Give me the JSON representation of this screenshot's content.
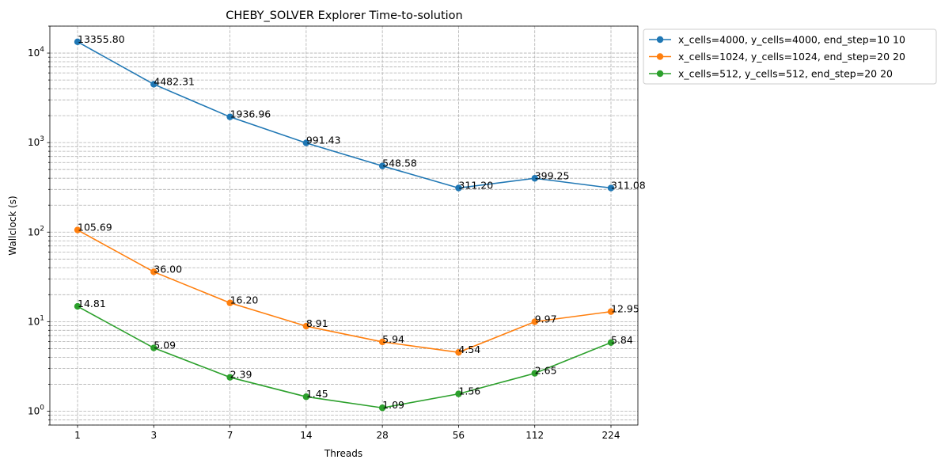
{
  "chart_data": {
    "type": "line",
    "title": "CHEBY_SOLVER Explorer Time-to-solution",
    "xlabel": "Threads",
    "ylabel": "Wallclock (s)",
    "yscale": "log",
    "ylim": [
      0.7,
      20000
    ],
    "grid": true,
    "legend_position": "outside-top-right",
    "categories": [
      "1",
      "3",
      "7",
      "14",
      "28",
      "56",
      "112",
      "224"
    ],
    "series": [
      {
        "name": "x_cells=4000, y_cells=4000, end_step=10 10",
        "color": "#1f77b4",
        "values": [
          13355.8,
          4482.31,
          1936.96,
          991.43,
          548.58,
          311.2,
          399.25,
          311.08
        ],
        "labels": [
          "13355.80",
          "4482.31",
          "1936.96",
          "991.43",
          "548.58",
          "311.20",
          "399.25",
          "311.08"
        ]
      },
      {
        "name": "x_cells=1024, y_cells=1024, end_step=20 20",
        "color": "#ff7f0e",
        "values": [
          105.69,
          36.0,
          16.2,
          8.91,
          5.94,
          4.54,
          9.97,
          12.95
        ],
        "labels": [
          "105.69",
          "36.00",
          "16.20",
          "8.91",
          "5.94",
          "4.54",
          "9.97",
          "12.95"
        ]
      },
      {
        "name": "x_cells=512, y_cells=512, end_step=20 20",
        "color": "#2ca02c",
        "values": [
          14.81,
          5.09,
          2.39,
          1.45,
          1.09,
          1.56,
          2.65,
          5.84
        ],
        "labels": [
          "14.81",
          "5.09",
          "2.39",
          "1.45",
          "1.09",
          "1.56",
          "2.65",
          "5.84"
        ]
      }
    ]
  }
}
